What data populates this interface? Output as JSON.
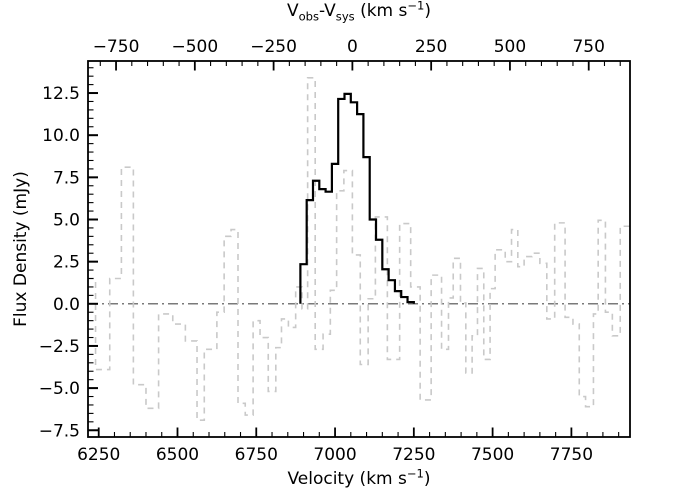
{
  "figure": {
    "background": "#ffffff",
    "ylabel": "Flux Density (mJy)",
    "top_label_parts": {
      "v1": "V",
      "sub1": "obs",
      "dash": "-V",
      "sub2": "sys",
      "units_pre": " (km s",
      "sup": "−1",
      "units_post": ")"
    },
    "bottom_label_parts": {
      "pre": "Velocity (km s",
      "sup": "−1",
      "post": ")"
    }
  },
  "chart_data": {
    "type": "line",
    "subtype": "step-histogram-spectrum",
    "title": "",
    "xlabel": "Velocity (km s⁻¹)",
    "xlabel_top": "V_obs-V_sys (km s⁻¹)",
    "ylabel": "Flux Density (mJy)",
    "xlim": [
      6216,
      7936
    ],
    "ylim": [
      -7.9,
      14.4
    ],
    "v_sys_offset": 7055,
    "grid": false,
    "legend": "none",
    "frame_color": "#000000",
    "x_ticks_bottom": [
      {
        "label": "6250",
        "value": 6250
      },
      {
        "label": "6500",
        "value": 6500
      },
      {
        "label": "6750",
        "value": 6750
      },
      {
        "label": "7000",
        "value": 7000
      },
      {
        "label": "7250",
        "value": 7250
      },
      {
        "label": "7500",
        "value": 7500
      },
      {
        "label": "7750",
        "value": 7750
      }
    ],
    "x_minor_step": 50,
    "x_ticks_top": [
      {
        "label": "−750",
        "value": -750
      },
      {
        "label": "−500",
        "value": -500
      },
      {
        "label": "−250",
        "value": -250
      },
      {
        "label": "0",
        "value": 0
      },
      {
        "label": "250",
        "value": 250
      },
      {
        "label": "500",
        "value": 500
      },
      {
        "label": "750",
        "value": 750
      }
    ],
    "y_ticks": [
      {
        "label": "−7.5",
        "value": -7.5
      },
      {
        "label": "−5.0",
        "value": -5.0
      },
      {
        "label": "−2.5",
        "value": -2.5
      },
      {
        "label": "0.0",
        "value": 0.0
      },
      {
        "label": "2.5",
        "value": 2.5
      },
      {
        "label": "5.0",
        "value": 5.0
      },
      {
        "label": "7.5",
        "value": 7.5
      },
      {
        "label": "10.0",
        "value": 10.0
      },
      {
        "label": "12.5",
        "value": 12.5
      }
    ],
    "y_minor_step": 0.5,
    "zero_line": {
      "y": 0.0,
      "style": "dashdot",
      "color": "#7a7a7a"
    },
    "series": [
      {
        "name": "source-spectrum",
        "color": "#000000",
        "line": "solid",
        "width": 2.2,
        "from_baseline": true,
        "end": 7250,
        "steps": [
          [
            6890,
            2.35
          ],
          [
            6910,
            6.15
          ],
          [
            6930,
            7.3
          ],
          [
            6950,
            6.8
          ],
          [
            6970,
            6.65
          ],
          [
            6990,
            8.3
          ],
          [
            7010,
            12.15
          ],
          [
            7030,
            12.45
          ],
          [
            7050,
            11.95
          ],
          [
            7070,
            11.25
          ],
          [
            7090,
            8.7
          ],
          [
            7110,
            5.0
          ],
          [
            7130,
            3.8
          ],
          [
            7150,
            2.05
          ],
          [
            7170,
            1.4
          ],
          [
            7190,
            0.75
          ],
          [
            7210,
            0.4
          ],
          [
            7230,
            0.1
          ]
        ]
      },
      {
        "name": "reference-spectrum",
        "color": "#c9c9c9",
        "line": "dashed",
        "width": 1.6,
        "from_baseline": false,
        "end": 7936,
        "steps": [
          [
            6216,
            1.5
          ],
          [
            6240,
            -3.9
          ],
          [
            6285,
            1.5
          ],
          [
            6322,
            8.1
          ],
          [
            6360,
            -4.8
          ],
          [
            6400,
            -6.2
          ],
          [
            6440,
            -0.6
          ],
          [
            6485,
            -1.2
          ],
          [
            6525,
            -2.2
          ],
          [
            6562,
            -6.9
          ],
          [
            6585,
            -2.7
          ],
          [
            6625,
            -0.5
          ],
          [
            6648,
            4.0
          ],
          [
            6670,
            4.4
          ],
          [
            6692,
            -5.9
          ],
          [
            6715,
            -6.6
          ],
          [
            6740,
            -1.0
          ],
          [
            6762,
            -2.0
          ],
          [
            6788,
            -5.2
          ],
          [
            6812,
            -2.6
          ],
          [
            6830,
            -0.9
          ],
          [
            6852,
            -1.4
          ],
          [
            6875,
            1.0
          ],
          [
            6895,
            -0.3
          ],
          [
            6913,
            13.4
          ],
          [
            6937,
            -2.7
          ],
          [
            6962,
            -1.8
          ],
          [
            6985,
            0.8
          ],
          [
            7005,
            6.7
          ],
          [
            7028,
            7.9
          ],
          [
            7055,
            2.9
          ],
          [
            7080,
            -3.6
          ],
          [
            7105,
            0.3
          ],
          [
            7128,
            5.15
          ],
          [
            7166,
            -3.3
          ],
          [
            7205,
            4.76
          ],
          [
            7240,
            1.0
          ],
          [
            7270,
            -5.7
          ],
          [
            7305,
            1.7
          ],
          [
            7338,
            -2.7
          ],
          [
            7360,
            0.35
          ],
          [
            7375,
            2.7
          ],
          [
            7398,
            0.05
          ],
          [
            7415,
            -4.1
          ],
          [
            7435,
            -1.9
          ],
          [
            7452,
            2.1
          ],
          [
            7472,
            -3.3
          ],
          [
            7492,
            0.9
          ],
          [
            7508,
            3.2
          ],
          [
            7540,
            2.5
          ],
          [
            7560,
            4.4
          ],
          [
            7580,
            2.2
          ],
          [
            7600,
            2.8
          ],
          [
            7625,
            3.0
          ],
          [
            7650,
            2.4
          ],
          [
            7672,
            -0.9
          ],
          [
            7697,
            4.8
          ],
          [
            7730,
            -0.8
          ],
          [
            7755,
            -1.2
          ],
          [
            7775,
            -5.5
          ],
          [
            7795,
            -6.1
          ],
          [
            7820,
            -0.6
          ],
          [
            7835,
            4.95
          ],
          [
            7858,
            -0.5
          ],
          [
            7880,
            -1.9
          ],
          [
            7905,
            4.6
          ]
        ]
      }
    ]
  }
}
